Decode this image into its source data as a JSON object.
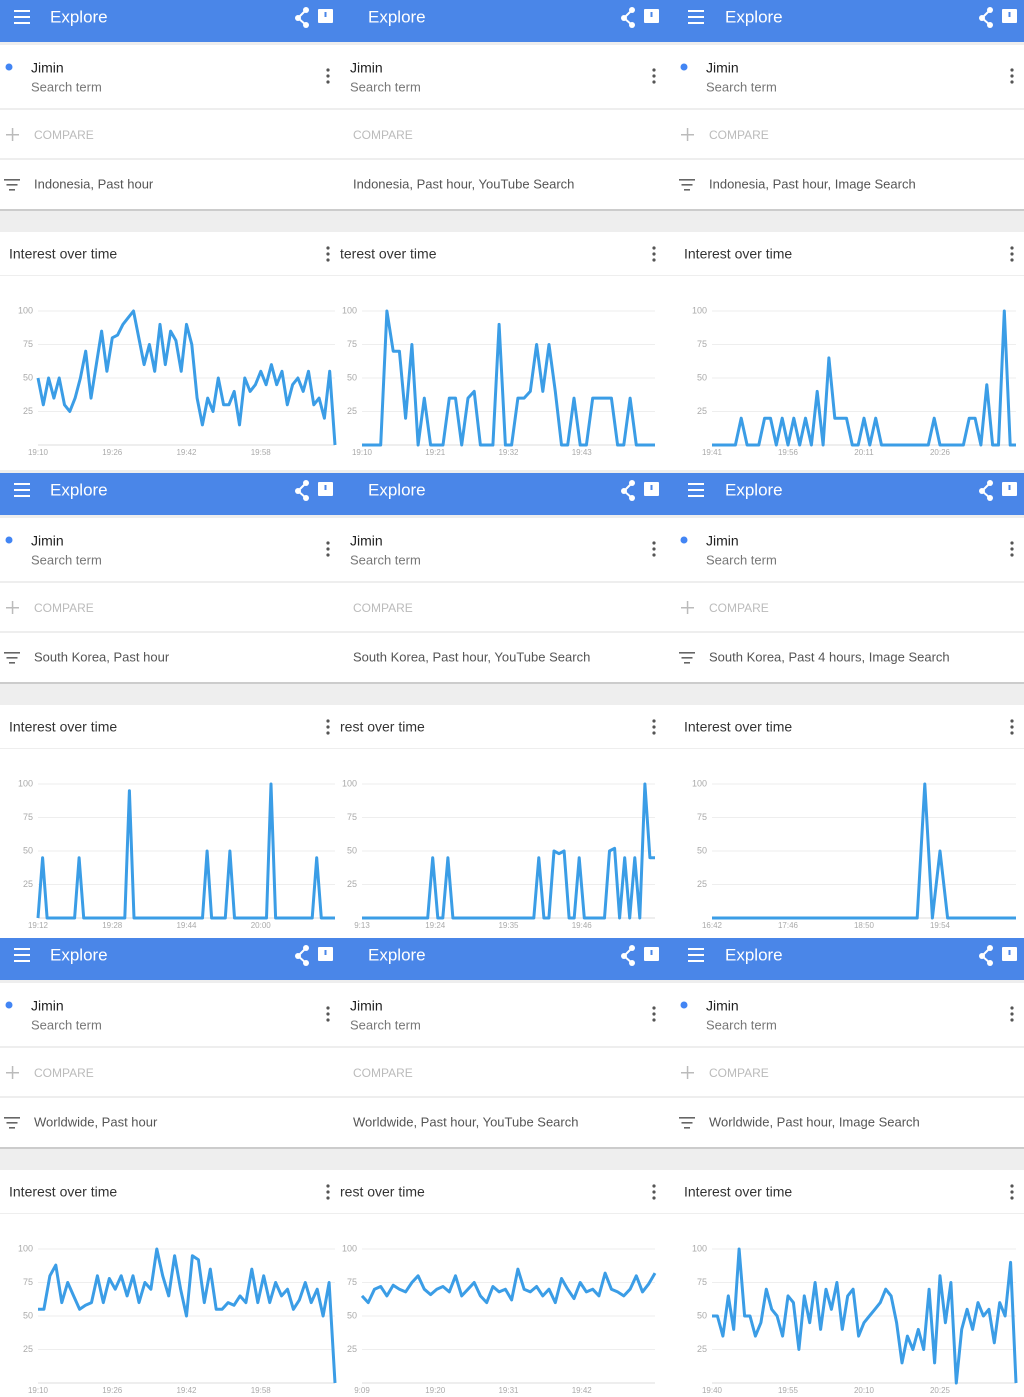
{
  "panels": [
    {
      "header": "Explore",
      "term": "Jimin",
      "term_type": "Search term",
      "compare": "COMPARE",
      "filter": "Indonesia, Past hour",
      "card_title": "Interest over time",
      "chart_data": {
        "type": "line",
        "color": "#3b9de6",
        "ylim": [
          0,
          100
        ],
        "yticks": [
          25,
          50,
          75,
          100
        ],
        "x_labels": [
          "19:10",
          "19:26",
          "19:42",
          "19:58"
        ],
        "values": [
          50,
          30,
          50,
          35,
          50,
          30,
          25,
          35,
          50,
          70,
          35,
          60,
          85,
          55,
          80,
          82,
          90,
          95,
          100,
          80,
          60,
          75,
          55,
          90,
          60,
          85,
          78,
          55,
          90,
          75,
          35,
          15,
          35,
          25,
          50,
          30,
          30,
          40,
          15,
          50,
          40,
          45,
          55,
          45,
          60,
          45,
          55,
          30,
          45,
          50,
          40,
          55,
          30,
          35,
          20,
          55,
          0
        ]
      }
    },
    {
      "header": "Explore",
      "term": "Jimin",
      "term_type": "Search term",
      "compare": "COMPARE",
      "filter": "Indonesia, Past hour, YouTube Search",
      "card_title": "terest over time",
      "chart_data": {
        "type": "line",
        "color": "#3b9de6",
        "ylim": [
          0,
          100
        ],
        "yticks": [
          25,
          50,
          75,
          100
        ],
        "x_labels": [
          "19:10",
          "19:21",
          "19:32",
          "19:43"
        ],
        "values": [
          0,
          0,
          0,
          0,
          100,
          70,
          70,
          20,
          75,
          0,
          35,
          0,
          0,
          0,
          35,
          35,
          0,
          35,
          40,
          0,
          0,
          0,
          90,
          0,
          0,
          35,
          35,
          40,
          75,
          40,
          75,
          40,
          0,
          0,
          35,
          0,
          0,
          35,
          35,
          35,
          35,
          0,
          0,
          35,
          0,
          0,
          0,
          0
        ]
      }
    },
    {
      "header": "Explore",
      "term": "Jimin",
      "term_type": "Search term",
      "compare": "COMPARE",
      "filter": "Indonesia, Past hour, Image Search",
      "card_title": "Interest over time",
      "chart_data": {
        "type": "line",
        "color": "#3b9de6",
        "ylim": [
          0,
          100
        ],
        "yticks": [
          25,
          50,
          75,
          100
        ],
        "x_labels": [
          "19:41",
          "19:56",
          "20:11",
          "20:26"
        ],
        "values": [
          0,
          0,
          0,
          0,
          0,
          20,
          0,
          0,
          0,
          20,
          20,
          0,
          20,
          0,
          20,
          0,
          20,
          0,
          40,
          0,
          65,
          20,
          20,
          20,
          0,
          0,
          20,
          0,
          20,
          0,
          0,
          0,
          0,
          0,
          0,
          0,
          0,
          0,
          20,
          0,
          0,
          0,
          0,
          0,
          20,
          20,
          0,
          45,
          0,
          0,
          100,
          0,
          0
        ]
      }
    },
    {
      "header": "Explore",
      "term": "Jimin",
      "term_type": "Search term",
      "compare": "COMPARE",
      "filter": "South Korea, Past hour",
      "card_title": "Interest over time",
      "chart_data": {
        "type": "line",
        "color": "#3b9de6",
        "ylim": [
          0,
          100
        ],
        "yticks": [
          25,
          50,
          75,
          100
        ],
        "x_labels": [
          "19:12",
          "19:28",
          "19:44",
          "20:00"
        ],
        "values": [
          0,
          45,
          0,
          0,
          0,
          0,
          0,
          0,
          0,
          45,
          0,
          0,
          0,
          0,
          0,
          0,
          0,
          0,
          0,
          0,
          95,
          0,
          0,
          0,
          0,
          0,
          0,
          0,
          0,
          0,
          0,
          0,
          0,
          0,
          0,
          0,
          0,
          50,
          0,
          0,
          0,
          0,
          50,
          0,
          0,
          0,
          0,
          0,
          0,
          0,
          0,
          100,
          0,
          0,
          0,
          0,
          0,
          0,
          0,
          0,
          0,
          45,
          0,
          0,
          0,
          0
        ]
      }
    },
    {
      "header": "Explore",
      "term": "Jimin",
      "term_type": "Search term",
      "compare": "COMPARE",
      "filter": "South Korea, Past hour, YouTube Search",
      "card_title": "rest over time",
      "chart_data": {
        "type": "line",
        "color": "#3b9de6",
        "ylim": [
          0,
          100
        ],
        "yticks": [
          25,
          50,
          75,
          100
        ],
        "x_labels": [
          "9:13",
          "19:24",
          "19:35",
          "19:46"
        ],
        "values": [
          0,
          0,
          0,
          0,
          0,
          0,
          0,
          0,
          0,
          0,
          0,
          0,
          0,
          0,
          45,
          0,
          0,
          45,
          0,
          0,
          0,
          0,
          0,
          0,
          0,
          0,
          0,
          0,
          0,
          0,
          0,
          0,
          0,
          0,
          0,
          45,
          0,
          0,
          50,
          48,
          50,
          0,
          0,
          45,
          0,
          0,
          0,
          0,
          0,
          50,
          52,
          0,
          45,
          0,
          45,
          0,
          100,
          45,
          45
        ]
      }
    },
    {
      "header": "Explore",
      "term": "Jimin",
      "term_type": "Search term",
      "compare": "COMPARE",
      "filter": "South Korea, Past 4 hours, Image Search",
      "card_title": "Interest over time",
      "chart_data": {
        "type": "line",
        "color": "#3b9de6",
        "ylim": [
          0,
          100
        ],
        "yticks": [
          25,
          50,
          75,
          100
        ],
        "x_labels": [
          "16:42",
          "17:46",
          "18:50",
          "19:54"
        ],
        "values": [
          0,
          0,
          0,
          0,
          0,
          0,
          0,
          0,
          0,
          0,
          0,
          0,
          0,
          0,
          0,
          0,
          0,
          0,
          0,
          0,
          0,
          0,
          0,
          0,
          0,
          0,
          0,
          0,
          100,
          0,
          50,
          0,
          0,
          0,
          0,
          0,
          0,
          0,
          0,
          0,
          0
        ]
      }
    },
    {
      "header": "Explore",
      "term": "Jimin",
      "term_type": "Search term",
      "compare": "COMPARE",
      "filter": "Worldwide, Past hour",
      "card_title": "Interest over time",
      "chart_data": {
        "type": "line",
        "color": "#3b9de6",
        "ylim": [
          0,
          100
        ],
        "yticks": [
          25,
          50,
          75,
          100
        ],
        "x_labels": [
          "19:10",
          "19:26",
          "19:42",
          "19:58"
        ],
        "values": [
          55,
          55,
          80,
          88,
          60,
          75,
          65,
          55,
          58,
          60,
          80,
          60,
          78,
          70,
          80,
          65,
          80,
          60,
          75,
          70,
          100,
          80,
          65,
          95,
          70,
          50,
          95,
          92,
          60,
          85,
          55,
          55,
          60,
          58,
          65,
          60,
          85,
          60,
          80,
          60,
          75,
          65,
          70,
          55,
          62,
          75,
          60,
          70,
          50,
          75,
          0
        ]
      }
    },
    {
      "header": "Explore",
      "term": "Jimin",
      "term_type": "Search term",
      "compare": "COMPARE",
      "filter": "Worldwide, Past hour, YouTube Search",
      "card_title": "rest over time",
      "chart_data": {
        "type": "line",
        "color": "#3b9de6",
        "ylim": [
          0,
          100
        ],
        "yticks": [
          25,
          50,
          75,
          100
        ],
        "x_labels": [
          "9:09",
          "19:20",
          "19:31",
          "19:42"
        ],
        "values": [
          65,
          60,
          70,
          72,
          65,
          73,
          70,
          68,
          75,
          80,
          70,
          66,
          70,
          72,
          68,
          80,
          65,
          70,
          75,
          65,
          60,
          72,
          68,
          70,
          62,
          85,
          70,
          68,
          72,
          65,
          70,
          60,
          78,
          70,
          63,
          75,
          68,
          70,
          65,
          82,
          70,
          68,
          65,
          70,
          80,
          68,
          74,
          82
        ]
      }
    },
    {
      "header": "Explore",
      "term": "Jimin",
      "term_type": "Search term",
      "compare": "COMPARE",
      "filter": "Worldwide, Past hour, Image Search",
      "card_title": "Interest over time",
      "chart_data": {
        "type": "line",
        "color": "#3b9de6",
        "ylim": [
          0,
          100
        ],
        "yticks": [
          25,
          50,
          75,
          100
        ],
        "x_labels": [
          "19:40",
          "19:55",
          "20:10",
          "20:25"
        ],
        "values": [
          50,
          50,
          35,
          65,
          40,
          100,
          50,
          50,
          35,
          45,
          70,
          55,
          50,
          35,
          65,
          60,
          25,
          65,
          45,
          75,
          40,
          70,
          55,
          75,
          40,
          65,
          70,
          35,
          45,
          50,
          55,
          60,
          70,
          65,
          45,
          15,
          35,
          25,
          40,
          25,
          70,
          15,
          80,
          45,
          75,
          0,
          40,
          55,
          40,
          60,
          50,
          55,
          30,
          60,
          50,
          90,
          0
        ]
      }
    }
  ]
}
